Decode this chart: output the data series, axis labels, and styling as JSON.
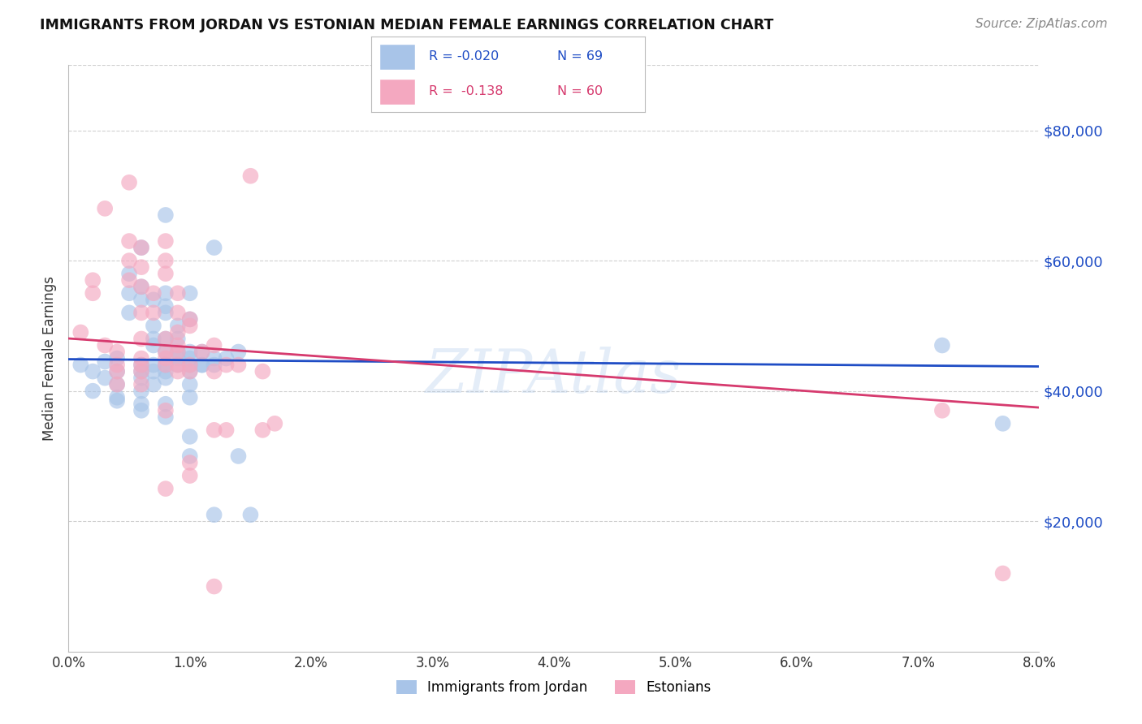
{
  "title": "IMMIGRANTS FROM JORDAN VS ESTONIAN MEDIAN FEMALE EARNINGS CORRELATION CHART",
  "source": "Source: ZipAtlas.com",
  "ylabel": "Median Female Earnings",
  "yticks": [
    0,
    20000,
    40000,
    60000,
    80000
  ],
  "ytick_labels": [
    "",
    "$20,000",
    "$40,000",
    "$60,000",
    "$80,000"
  ],
  "xlim": [
    0.0,
    0.08
  ],
  "ylim": [
    0,
    90000
  ],
  "jordan_color": "#a8c4e8",
  "estonian_color": "#f4a8c0",
  "jordan_line_color": "#1f4dc5",
  "estonian_line_color": "#d63a6e",
  "jordan_points": [
    [
      0.001,
      44000
    ],
    [
      0.002,
      43000
    ],
    [
      0.002,
      40000
    ],
    [
      0.003,
      44500
    ],
    [
      0.003,
      42000
    ],
    [
      0.004,
      45000
    ],
    [
      0.004,
      43000
    ],
    [
      0.004,
      41000
    ],
    [
      0.004,
      39000
    ],
    [
      0.004,
      38500
    ],
    [
      0.005,
      58000
    ],
    [
      0.005,
      55000
    ],
    [
      0.005,
      52000
    ],
    [
      0.006,
      62000
    ],
    [
      0.006,
      56000
    ],
    [
      0.006,
      54000
    ],
    [
      0.006,
      44000
    ],
    [
      0.006,
      43000
    ],
    [
      0.006,
      42000
    ],
    [
      0.006,
      40000
    ],
    [
      0.006,
      38000
    ],
    [
      0.006,
      37000
    ],
    [
      0.007,
      54000
    ],
    [
      0.007,
      50000
    ],
    [
      0.007,
      48000
    ],
    [
      0.007,
      47000
    ],
    [
      0.007,
      44000
    ],
    [
      0.007,
      43000
    ],
    [
      0.007,
      41000
    ],
    [
      0.008,
      67000
    ],
    [
      0.008,
      55000
    ],
    [
      0.008,
      53000
    ],
    [
      0.008,
      52000
    ],
    [
      0.008,
      48000
    ],
    [
      0.008,
      46000
    ],
    [
      0.008,
      44000
    ],
    [
      0.008,
      43000
    ],
    [
      0.008,
      42000
    ],
    [
      0.008,
      38000
    ],
    [
      0.008,
      36000
    ],
    [
      0.009,
      50000
    ],
    [
      0.009,
      48000
    ],
    [
      0.009,
      46000
    ],
    [
      0.009,
      45000
    ],
    [
      0.009,
      44000
    ],
    [
      0.01,
      55000
    ],
    [
      0.01,
      51000
    ],
    [
      0.01,
      46000
    ],
    [
      0.01,
      45000
    ],
    [
      0.01,
      44000
    ],
    [
      0.01,
      43000
    ],
    [
      0.01,
      41000
    ],
    [
      0.01,
      39000
    ],
    [
      0.01,
      33000
    ],
    [
      0.01,
      30000
    ],
    [
      0.011,
      46000
    ],
    [
      0.011,
      44000
    ],
    [
      0.011,
      44000
    ],
    [
      0.012,
      62000
    ],
    [
      0.012,
      45000
    ],
    [
      0.012,
      44000
    ],
    [
      0.012,
      21000
    ],
    [
      0.013,
      45000
    ],
    [
      0.014,
      46000
    ],
    [
      0.014,
      30000
    ],
    [
      0.015,
      21000
    ],
    [
      0.072,
      47000
    ],
    [
      0.077,
      35000
    ]
  ],
  "estonian_points": [
    [
      0.001,
      49000
    ],
    [
      0.002,
      57000
    ],
    [
      0.002,
      55000
    ],
    [
      0.003,
      68000
    ],
    [
      0.003,
      47000
    ],
    [
      0.004,
      46000
    ],
    [
      0.004,
      44000
    ],
    [
      0.004,
      43000
    ],
    [
      0.004,
      41000
    ],
    [
      0.005,
      72000
    ],
    [
      0.005,
      63000
    ],
    [
      0.005,
      60000
    ],
    [
      0.005,
      57000
    ],
    [
      0.006,
      62000
    ],
    [
      0.006,
      59000
    ],
    [
      0.006,
      56000
    ],
    [
      0.006,
      52000
    ],
    [
      0.006,
      48000
    ],
    [
      0.006,
      45000
    ],
    [
      0.006,
      44000
    ],
    [
      0.006,
      43000
    ],
    [
      0.006,
      41000
    ],
    [
      0.007,
      55000
    ],
    [
      0.007,
      52000
    ],
    [
      0.008,
      63000
    ],
    [
      0.008,
      60000
    ],
    [
      0.008,
      58000
    ],
    [
      0.008,
      48000
    ],
    [
      0.008,
      46000
    ],
    [
      0.008,
      45000
    ],
    [
      0.008,
      44000
    ],
    [
      0.008,
      37000
    ],
    [
      0.008,
      25000
    ],
    [
      0.009,
      55000
    ],
    [
      0.009,
      52000
    ],
    [
      0.009,
      49000
    ],
    [
      0.009,
      47000
    ],
    [
      0.009,
      46000
    ],
    [
      0.009,
      44000
    ],
    [
      0.009,
      43000
    ],
    [
      0.01,
      51000
    ],
    [
      0.01,
      50000
    ],
    [
      0.01,
      44000
    ],
    [
      0.01,
      43000
    ],
    [
      0.01,
      29000
    ],
    [
      0.01,
      27000
    ],
    [
      0.011,
      46000
    ],
    [
      0.012,
      47000
    ],
    [
      0.012,
      43000
    ],
    [
      0.012,
      34000
    ],
    [
      0.012,
      10000
    ],
    [
      0.013,
      44000
    ],
    [
      0.013,
      34000
    ],
    [
      0.014,
      44000
    ],
    [
      0.015,
      73000
    ],
    [
      0.016,
      43000
    ],
    [
      0.016,
      34000
    ],
    [
      0.017,
      35000
    ],
    [
      0.072,
      37000
    ],
    [
      0.077,
      12000
    ]
  ],
  "watermark": "ZIPAtlas",
  "background_color": "#ffffff",
  "grid_color": "#d0d0d0"
}
